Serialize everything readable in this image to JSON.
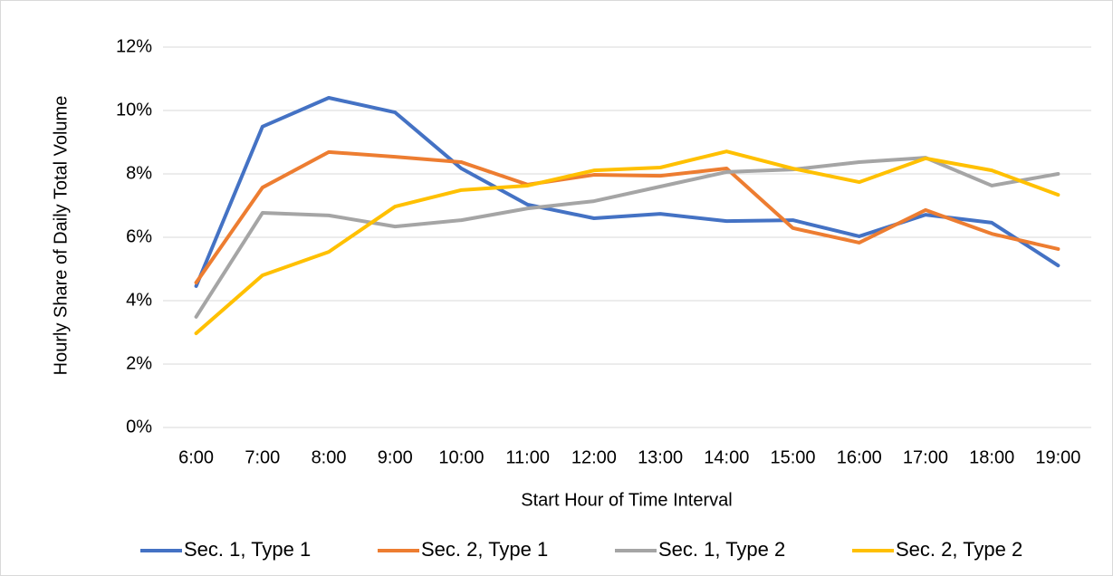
{
  "chart_data": {
    "type": "line",
    "x_label": "Start Hour of Time Interval",
    "y_label": "Hourly Share of Daily Total Volume",
    "categories": [
      "6:00",
      "7:00",
      "8:00",
      "9:00",
      "10:00",
      "11:00",
      "12:00",
      "13:00",
      "14:00",
      "15:00",
      "16:00",
      "17:00",
      "18:00",
      "19:00"
    ],
    "series": [
      {
        "name": "Sec. 1, Type 1",
        "color": "#4472c4",
        "values": [
          4.46,
          9.49,
          10.4,
          9.94,
          8.17,
          7.03,
          6.6,
          6.74,
          6.51,
          6.54,
          6.03,
          6.71,
          6.46,
          5.11
        ]
      },
      {
        "name": "Sec. 2, Type 1",
        "color": "#ed7d31",
        "values": [
          4.57,
          7.57,
          8.69,
          8.54,
          8.37,
          7.66,
          7.97,
          7.94,
          8.17,
          6.29,
          5.83,
          6.86,
          6.11,
          5.63
        ]
      },
      {
        "name": "Sec. 1, Type 2",
        "color": "#a5a5a5",
        "values": [
          3.49,
          6.77,
          6.69,
          6.34,
          6.54,
          6.91,
          7.14,
          7.6,
          8.06,
          8.14,
          8.37,
          8.51,
          7.63,
          8.0
        ]
      },
      {
        "name": "Sec. 2, Type 2",
        "color": "#ffc000",
        "values": [
          2.97,
          4.8,
          5.54,
          6.97,
          7.49,
          7.63,
          8.11,
          8.2,
          8.71,
          8.17,
          7.74,
          8.49,
          8.11,
          7.34
        ]
      }
    ],
    "ylim": [
      0,
      12
    ],
    "yticks": [
      {
        "value": 0,
        "label": "0%"
      },
      {
        "value": 2,
        "label": "2%"
      },
      {
        "value": 4,
        "label": "4%"
      },
      {
        "value": 6,
        "label": "6%"
      },
      {
        "value": 8,
        "label": "8%"
      },
      {
        "value": 10,
        "label": "10%"
      },
      {
        "value": 12,
        "label": "12%"
      }
    ],
    "grid": true,
    "legend": "bottom"
  }
}
